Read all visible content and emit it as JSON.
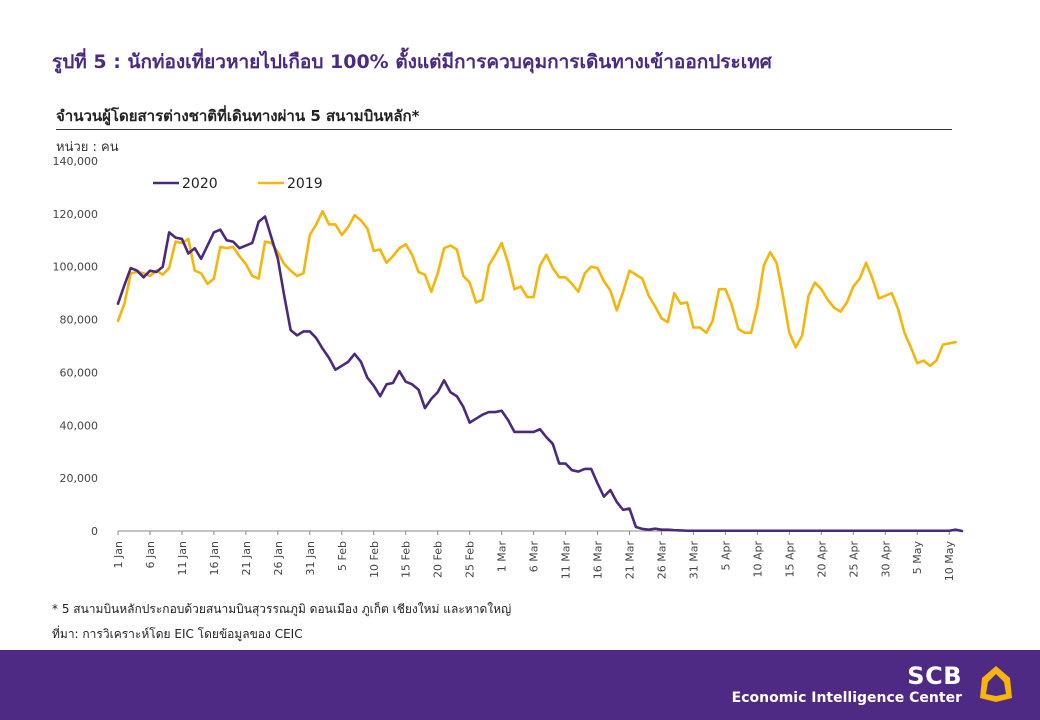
{
  "header": {
    "title": "รูปที่ 5 : นักท่องเที่ยวหายไปเกือบ 100% ตั้งแต่มีการควบคุมการเดินทางเข้าออกประเทศ",
    "subtitle": "จำนวนผู้โดยสารต่างชาติที่เดินทางผ่าน 5 สนามบินหลัก*",
    "unit": "หน่วย : คน"
  },
  "chart_data": {
    "type": "line",
    "title": "",
    "xlabel": "",
    "ylabel": "",
    "ylim": [
      0,
      140000
    ],
    "yticks": [
      0,
      20000,
      40000,
      60000,
      80000,
      100000,
      120000,
      140000
    ],
    "ytick_labels": [
      "0",
      "20,000",
      "40,000",
      "60,000",
      "80,000",
      "100,000",
      "120,000",
      "140,000"
    ],
    "xtick_labels": [
      "1 Jan",
      "6 Jan",
      "11 Jan",
      "16 Jan",
      "21 Jan",
      "26 Jan",
      "31 Jan",
      "5 Feb",
      "10 Feb",
      "15 Feb",
      "20 Feb",
      "25 Feb",
      "1 Mar",
      "6 Mar",
      "11 Mar",
      "16 Mar",
      "21 Mar",
      "26 Mar",
      "31 Mar",
      "5 Apr",
      "10 Apr",
      "15 Apr",
      "20 Apr",
      "25 Apr",
      "30 Apr",
      "5 May",
      "10 May"
    ],
    "x_start": "1 Jan",
    "x_end": "12 May",
    "legend_position": "top-left",
    "grid": false,
    "series": [
      {
        "name": "2020",
        "color": "#4b2a7e",
        "values": [
          86000,
          93000,
          99500,
          98500,
          96000,
          98500,
          98000,
          100000,
          113000,
          111000,
          110500,
          105000,
          107000,
          103000,
          108000,
          113000,
          114000,
          110000,
          109500,
          107000,
          108000,
          109000,
          117000,
          119000,
          111000,
          103000,
          89000,
          76000,
          74000,
          75500,
          75500,
          73000,
          69000,
          65500,
          61000,
          62500,
          64000,
          67000,
          64000,
          58000,
          55000,
          51000,
          55500,
          56000,
          60500,
          56500,
          55500,
          53500,
          46500,
          50000,
          52500,
          57000,
          52500,
          51000,
          47000,
          41000,
          42500,
          44000,
          45000,
          45000,
          45500,
          42000,
          37500,
          37500,
          37500,
          37500,
          38500,
          35500,
          33000,
          25500,
          25500,
          23000,
          22500,
          23500,
          23500,
          18000,
          13000,
          15500,
          11000,
          8000,
          8500,
          1500,
          800,
          500,
          900,
          500,
          500,
          300,
          200,
          100,
          100,
          100,
          100,
          100,
          100,
          100,
          100,
          100,
          100,
          100,
          100,
          100,
          100,
          100,
          100,
          100,
          100,
          100,
          100,
          100,
          100,
          100,
          100,
          100,
          100,
          100,
          100,
          100,
          100,
          100,
          100,
          100,
          100,
          100,
          100,
          100,
          100,
          100,
          100,
          100,
          100,
          500,
          0
        ],
        "extra_values": []
      },
      {
        "name": "2019",
        "color": "#f5b50a",
        "values": [
          79500,
          86000,
          97500,
          98000,
          97500,
          96500,
          98500,
          97000,
          99500,
          109500,
          109000,
          110500,
          98500,
          97500,
          93500,
          95500,
          107500,
          107000,
          107500,
          104000,
          101000,
          96500,
          95500,
          109500,
          109000,
          105500,
          101000,
          98500,
          96500,
          97500,
          112000,
          116000,
          121000,
          116000,
          116000,
          112000,
          115000,
          119500,
          117500,
          114500,
          106000,
          106500,
          101500,
          104000,
          107000,
          108500,
          104500,
          98000,
          97000,
          90500,
          97500,
          107000,
          108000,
          106500,
          96500,
          94000,
          86500,
          87500,
          100500,
          104500,
          109000,
          101500,
          91500,
          92500,
          88500,
          88500,
          100500,
          104500,
          99500,
          96000,
          96000,
          93500,
          90500,
          97500,
          100000,
          99500,
          94500,
          91000,
          83500,
          90500,
          98500,
          97000,
          95500,
          89000,
          85000,
          80500,
          79000,
          90000,
          86000,
          86500,
          77000,
          77000,
          75000,
          79500,
          91500,
          91500,
          85500,
          76500,
          75000,
          75000,
          85000,
          100500,
          105500,
          101500,
          89000,
          75000,
          69500,
          74000,
          89000,
          94000,
          91500,
          87500,
          84500,
          83000,
          86500,
          92500,
          95500,
          101500,
          95500,
          88000,
          89000,
          90000,
          84000,
          75000,
          69500,
          63500,
          64500,
          62500,
          64500,
          70500,
          71000,
          71500
        ],
        "extra_values": []
      }
    ]
  },
  "notes": {
    "footnote": "* 5 สนามบินหลักประกอบด้วยสนามบินสุวรรณภูมิ ดอนเมือง ภูเก็ต เชียงใหม่ และหาดใหญ่",
    "source": "ที่มา: การวิเคราะห์โดย EIC โดยข้อมูลของ CEIC"
  },
  "brand": {
    "name": "SCB",
    "tagline": "Economic Intelligence Center",
    "color": "#4e2a84",
    "logo_color": "#f5b50a",
    "logo_icon": "scb-logo-icon"
  }
}
